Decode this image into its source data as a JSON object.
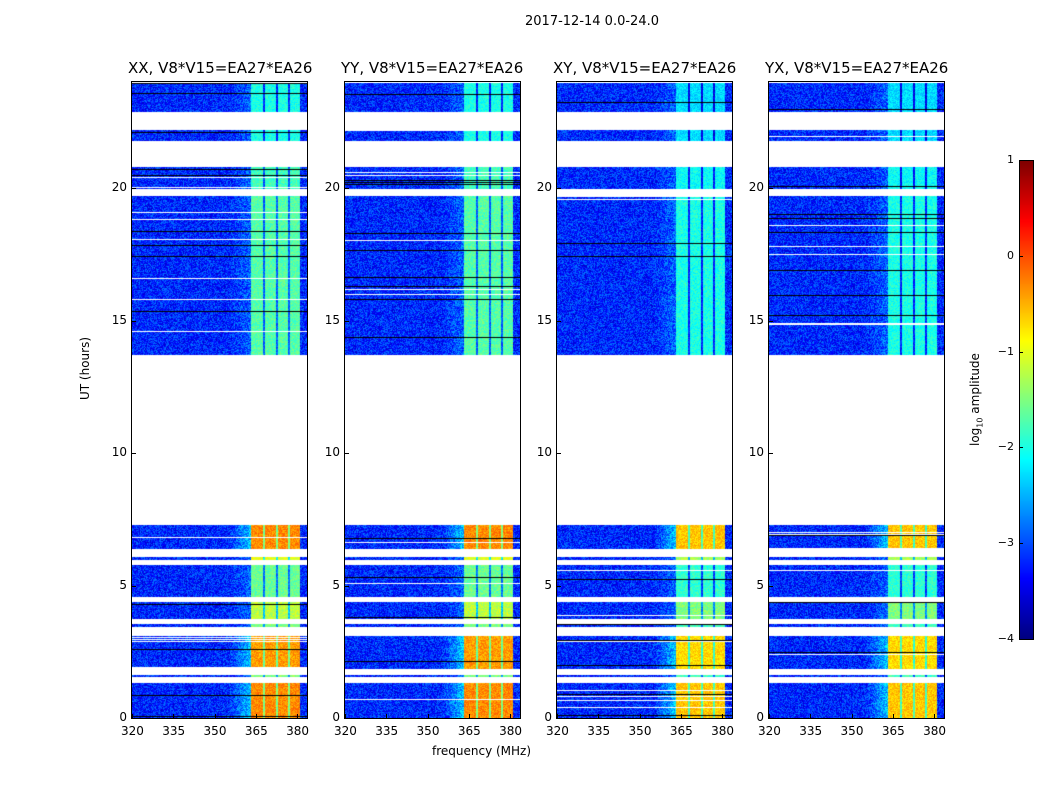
{
  "chart_data": {
    "type": "heatmap",
    "title": "2017-12-14 0.0-24.0",
    "xlabel": "frequency (MHz)",
    "ylabel": "UT (hours)",
    "xlim": [
      320,
      383.6
    ],
    "ylim": [
      0,
      24
    ],
    "xticks": [
      "320",
      "335",
      "350",
      "365",
      "380"
    ],
    "xtick_values": [
      320,
      335,
      350,
      365,
      380
    ],
    "yticks": [
      "0",
      "5",
      "10",
      "15",
      "20"
    ],
    "ytick_values": [
      0,
      5,
      10,
      15,
      20
    ],
    "panels": [
      {
        "title": "XX, V8*V15=EA27*EA26"
      },
      {
        "title": "YY, V8*V15=EA27*EA26"
      },
      {
        "title": "XY, V8*V15=EA27*EA26"
      },
      {
        "title": "YX, V8*V15=EA27*EA26"
      }
    ],
    "rfi_band_mhz": [
      363,
      381
    ],
    "background_level": -3.2,
    "data_segments_hours": [
      {
        "t": [
          0.0,
          1.35
        ],
        "rfi": -0.3
      },
      {
        "t": [
          1.55,
          1.65
        ],
        "rfi": -1.5
      },
      {
        "t": [
          1.85,
          3.1
        ],
        "rfi": -0.4
      },
      {
        "t": [
          3.45,
          3.55
        ],
        "rfi": -1.5
      },
      {
        "t": [
          3.75,
          4.4
        ],
        "rfi": -1.2
      },
      {
        "t": [
          4.6,
          5.8
        ],
        "rfi": -1.6
      },
      {
        "t": [
          6.0,
          6.1
        ],
        "rfi": -1.0
      },
      {
        "t": [
          6.4,
          7.3
        ],
        "rfi": -0.3
      },
      {
        "t": [
          13.7,
          19.7
        ],
        "rfi": -1.7
      },
      {
        "t": [
          20.0,
          20.8
        ],
        "rfi": -1.8
      },
      {
        "t": [
          21.8,
          22.2
        ],
        "rfi": -2.0
      },
      {
        "t": [
          22.9,
          24.0
        ],
        "rfi": -2.0
      }
    ],
    "colorbar": {
      "label_prefix": "log",
      "label_sub": "10",
      "label_suffix": " amplitude",
      "range": [
        -4,
        1
      ],
      "ticks": [
        "1",
        "0",
        "−1",
        "−2",
        "−3",
        "−4"
      ],
      "tick_values": [
        1,
        0,
        -1,
        -2,
        -3,
        -4
      ],
      "colormap": "jet"
    }
  }
}
